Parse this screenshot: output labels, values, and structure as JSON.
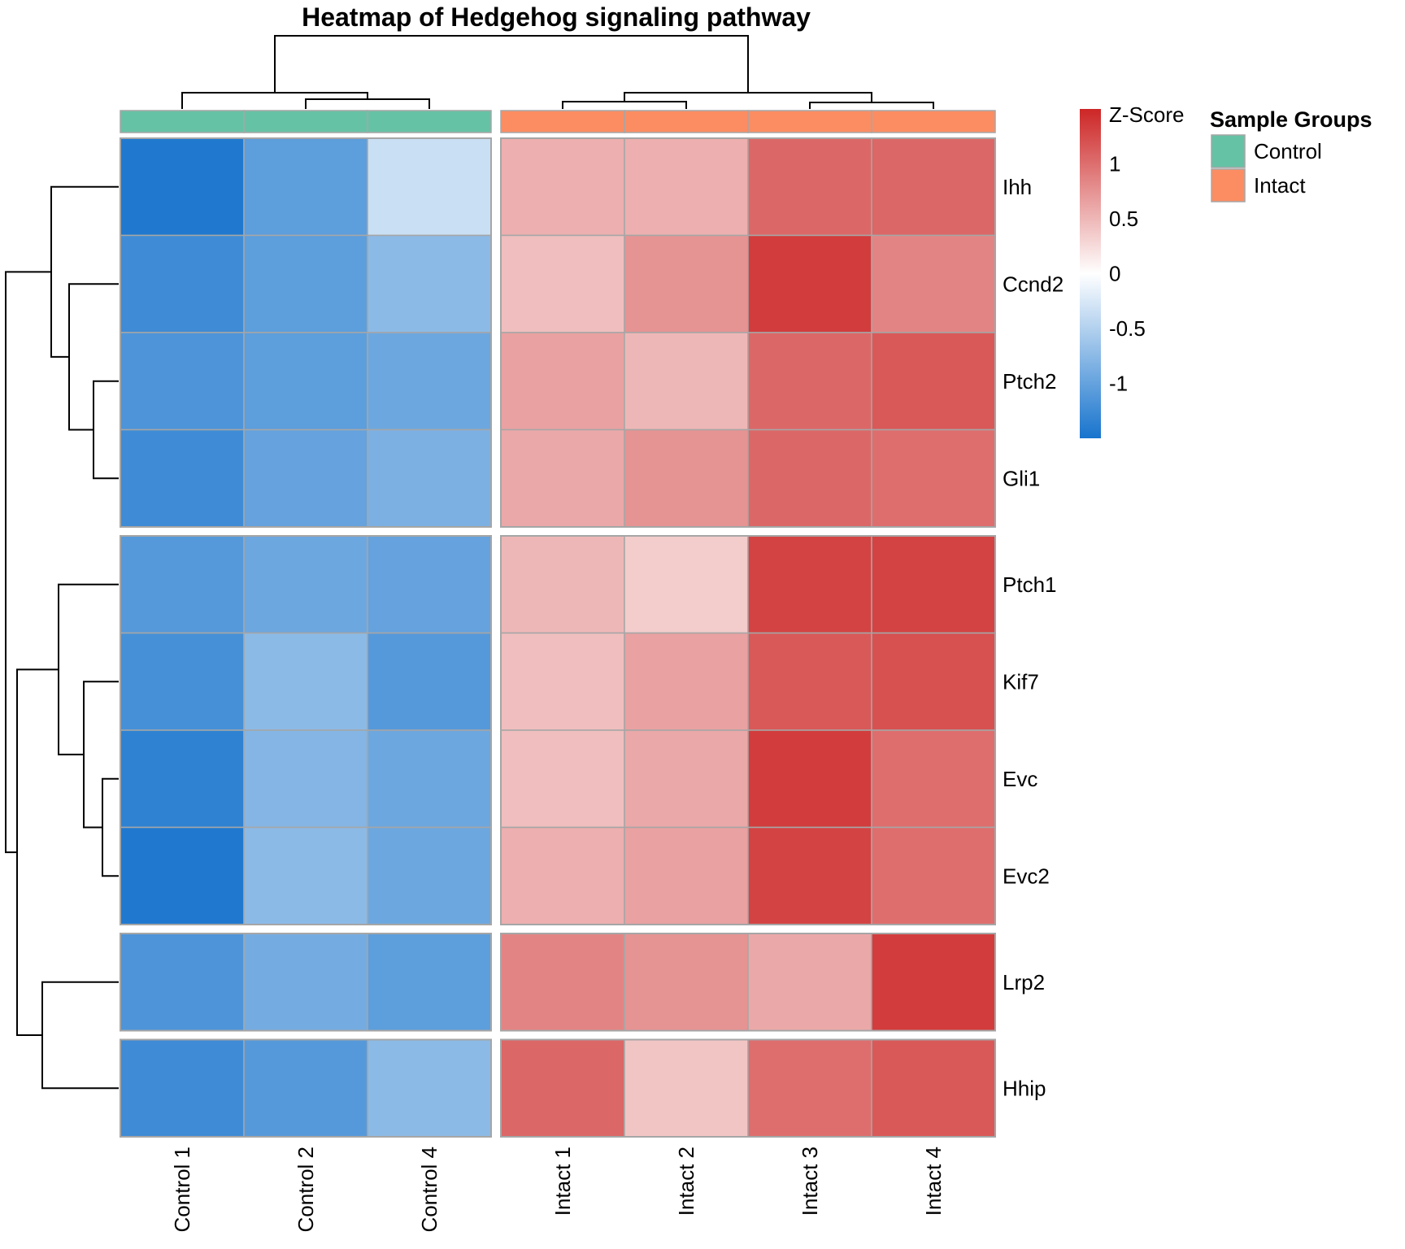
{
  "chart_data": {
    "type": "heatmap",
    "title": "Heatmap of Hedgehog signaling pathway",
    "columns": [
      "Control 1",
      "Control 2",
      "Control 4",
      "Intact 1",
      "Intact 2",
      "Intact 3",
      "Intact 4"
    ],
    "rows": [
      "Ihh",
      "Ccnd2",
      "Ptch2",
      "Gli1",
      "Ptch1",
      "Kif7",
      "Evc",
      "Evc2",
      "Lrp2",
      "Hhip"
    ],
    "column_groups": [
      "Control",
      "Control",
      "Control",
      "Intact",
      "Intact",
      "Intact",
      "Intact"
    ],
    "column_splits": [
      3
    ],
    "row_splits": [
      4,
      8,
      9
    ],
    "values": [
      [
        -1.45,
        -1.05,
        -0.35,
        0.55,
        0.55,
        1.05,
        1.05
      ],
      [
        -1.25,
        -1.05,
        -0.75,
        0.45,
        0.75,
        1.35,
        0.85
      ],
      [
        -1.15,
        -1.05,
        -0.95,
        0.65,
        0.5,
        1.05,
        1.15
      ],
      [
        -1.25,
        -1.0,
        -0.85,
        0.6,
        0.75,
        1.05,
        1.0
      ],
      [
        -1.1,
        -0.95,
        -1.0,
        0.5,
        0.35,
        1.3,
        1.3
      ],
      [
        -1.2,
        -0.75,
        -1.1,
        0.45,
        0.65,
        1.15,
        1.2
      ],
      [
        -1.35,
        -0.8,
        -0.95,
        0.45,
        0.6,
        1.35,
        1.0
      ],
      [
        -1.45,
        -0.75,
        -0.95,
        0.55,
        0.65,
        1.3,
        1.0
      ],
      [
        -1.15,
        -0.9,
        -1.05,
        0.85,
        0.75,
        0.6,
        1.35
      ],
      [
        -1.25,
        -1.1,
        -0.75,
        1.05,
        0.4,
        1.0,
        1.15
      ]
    ],
    "color_scale": {
      "title": "Z-Score",
      "min": -1.5,
      "max": 1.5,
      "colors": [
        "#1874cd",
        "#ffffff",
        "#cd2626"
      ],
      "ticks": [
        "1",
        "0.5",
        "0",
        "-0.5",
        "-1"
      ]
    },
    "legend": {
      "title": "Sample Groups",
      "placement": "top-right",
      "items": [
        {
          "label": "Control",
          "color": "#66c2a5"
        },
        {
          "label": "Intact",
          "color": "#fc8d62"
        }
      ]
    }
  }
}
